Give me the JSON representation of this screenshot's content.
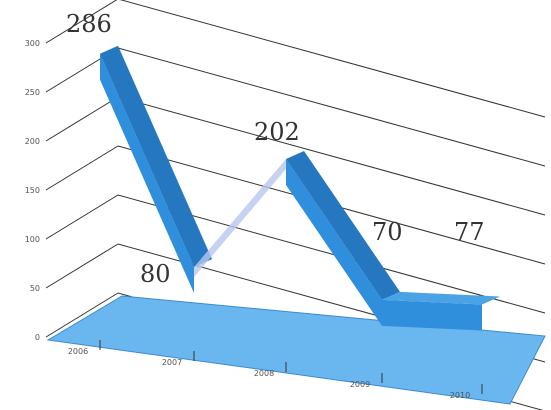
{
  "chart_data": {
    "type": "line",
    "style": "3d-ribbon",
    "categories": [
      "2006",
      "2007",
      "2008",
      "2009",
      "2010"
    ],
    "series": [
      {
        "values": [
          286,
          80,
          202,
          70,
          77
        ]
      }
    ],
    "data_labels": [
      "286",
      "80",
      "202",
      "70",
      "77"
    ],
    "yticks": [
      "0",
      "50",
      "100",
      "150",
      "200",
      "250",
      "300"
    ],
    "ylim": [
      0,
      300
    ],
    "grid": true,
    "legend": "none",
    "colors": {
      "ribbon": "#2f8fdc",
      "ribbon_dark": "#2578c0",
      "floor": "#6ab6ee",
      "grid": "#333333"
    }
  }
}
